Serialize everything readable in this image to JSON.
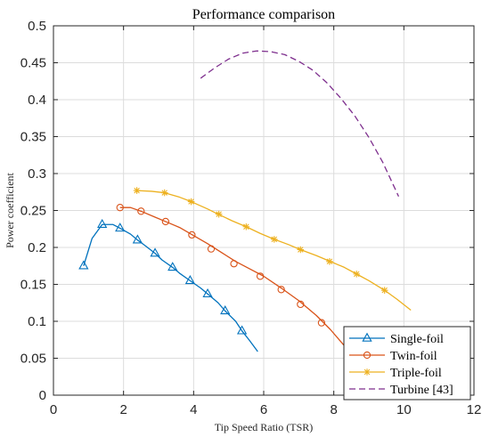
{
  "chart_data": {
    "type": "line",
    "title": "Performance comparison",
    "xlabel": "Tip Speed Ratio (TSR)",
    "ylabel": "Power coefficient",
    "xlim": [
      0,
      12
    ],
    "ylim": [
      0,
      0.5
    ],
    "xticks": [
      0,
      2,
      4,
      6,
      8,
      10,
      12
    ],
    "xtick_labels": [
      "0",
      "2",
      "4",
      "6",
      "8",
      "10",
      "12"
    ],
    "yticks": [
      0,
      0.05,
      0.1,
      0.15,
      0.2,
      0.25,
      0.3,
      0.35,
      0.4,
      0.45,
      0.5
    ],
    "ytick_labels": [
      "0",
      "0.05",
      "0.1",
      "0.15",
      "0.2",
      "0.25",
      "0.3",
      "0.35",
      "0.4",
      "0.45",
      "0.5"
    ],
    "grid": true,
    "legend_position": "bottom-right",
    "series": [
      {
        "name": "Single-foil",
        "color": "#0072BD",
        "marker": "triangle",
        "line_style": "solid",
        "x": [
          0.86,
          1.1,
          1.39,
          1.7,
          1.9,
          2.2,
          2.4,
          2.6,
          2.9,
          3.1,
          3.4,
          3.6,
          3.9,
          4.2,
          4.4,
          4.7,
          4.9,
          5.2,
          5.38,
          5.58,
          5.83
        ],
        "y": [
          0.175,
          0.212,
          0.231,
          0.231,
          0.226,
          0.218,
          0.21,
          0.203,
          0.192,
          0.183,
          0.173,
          0.165,
          0.155,
          0.145,
          0.137,
          0.125,
          0.114,
          0.1,
          0.087,
          0.075,
          0.059
        ],
        "markers_x": [
          0.86,
          1.39,
          1.9,
          2.4,
          2.9,
          3.4,
          3.9,
          4.4,
          4.9,
          5.38
        ],
        "markers_y": [
          0.175,
          0.231,
          0.226,
          0.21,
          0.192,
          0.173,
          0.155,
          0.137,
          0.114,
          0.087
        ]
      },
      {
        "name": "Twin-foil",
        "color": "#D95319",
        "marker": "circle",
        "line_style": "solid",
        "x": [
          1.9,
          2.2,
          2.5,
          2.9,
          3.2,
          3.6,
          4.0,
          4.4,
          4.8,
          5.2,
          5.6,
          6.0,
          6.5,
          7.0,
          7.5,
          7.9,
          8.3
        ],
        "y": [
          0.254,
          0.254,
          0.249,
          0.241,
          0.235,
          0.227,
          0.216,
          0.205,
          0.193,
          0.181,
          0.171,
          0.161,
          0.145,
          0.128,
          0.108,
          0.089,
          0.067
        ],
        "markers_x": [
          1.9,
          2.5,
          3.2,
          3.95,
          4.5,
          5.15,
          5.9,
          6.5,
          7.05,
          7.65
        ],
        "markers_y": [
          0.254,
          0.249,
          0.235,
          0.217,
          0.198,
          0.178,
          0.161,
          0.143,
          0.123,
          0.098
        ]
      },
      {
        "name": "Triple-foil",
        "color": "#EDB120",
        "marker": "asterisk",
        "line_style": "solid",
        "x": [
          2.38,
          2.8,
          3.17,
          3.6,
          3.93,
          4.4,
          4.7,
          5.1,
          5.5,
          5.9,
          6.3,
          6.7,
          7.05,
          7.5,
          7.9,
          8.3,
          8.65,
          9.0,
          9.45,
          9.8,
          10.2
        ],
        "y": [
          0.277,
          0.276,
          0.274,
          0.268,
          0.262,
          0.252,
          0.245,
          0.236,
          0.228,
          0.219,
          0.211,
          0.204,
          0.197,
          0.189,
          0.181,
          0.173,
          0.164,
          0.155,
          0.142,
          0.13,
          0.115
        ],
        "markers_x": [
          2.38,
          3.17,
          3.93,
          4.72,
          5.5,
          6.3,
          7.05,
          7.88,
          8.65,
          9.45
        ],
        "markers_y": [
          0.277,
          0.274,
          0.262,
          0.245,
          0.228,
          0.211,
          0.197,
          0.181,
          0.164,
          0.142
        ]
      },
      {
        "name": "Turbine [43]",
        "color": "#7E2F8E",
        "marker": "none",
        "line_style": "dashed",
        "x": [
          4.2,
          4.6,
          5.0,
          5.4,
          5.8,
          6.2,
          6.6,
          7.0,
          7.4,
          7.8,
          8.2,
          8.6,
          9.0,
          9.4,
          9.85
        ],
        "y": [
          0.429,
          0.443,
          0.455,
          0.463,
          0.466,
          0.465,
          0.461,
          0.452,
          0.44,
          0.423,
          0.402,
          0.378,
          0.349,
          0.315,
          0.269
        ]
      }
    ]
  }
}
